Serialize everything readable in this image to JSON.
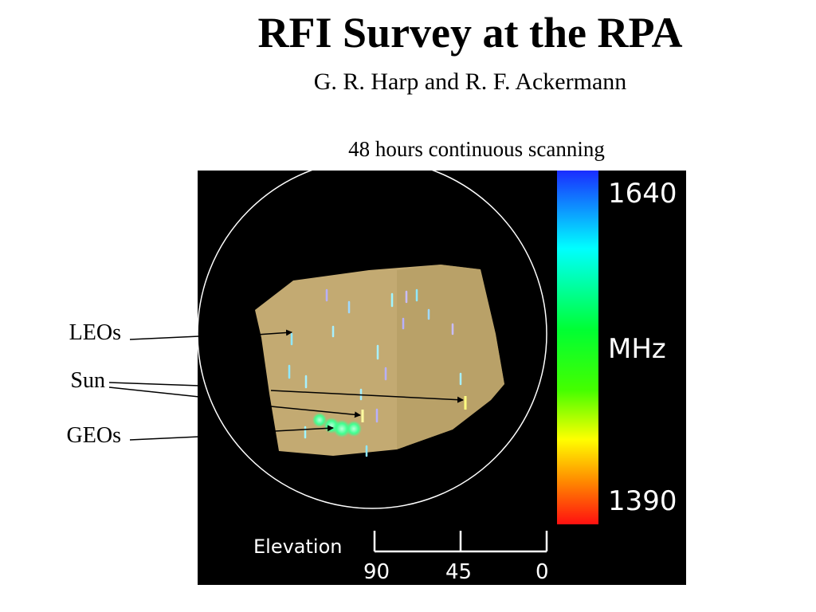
{
  "title": "RFI Survey at the RPA",
  "authors": "G. R. Harp and R. F. Ackermann",
  "subtitle": "48 hours continuous scanning",
  "labels": {
    "leos": "LEOs",
    "sun": "Sun",
    "geos": "GEOs"
  },
  "colorbar": {
    "max": "1640",
    "unit": "MHz",
    "min": "1390"
  },
  "elevation_scale": {
    "label": "Elevation",
    "ticks": [
      "90",
      "45",
      "0"
    ]
  },
  "colors": {
    "sky_fill": "#c3aa72",
    "panel_bg": "#000000",
    "circle": "#ffffff"
  }
}
